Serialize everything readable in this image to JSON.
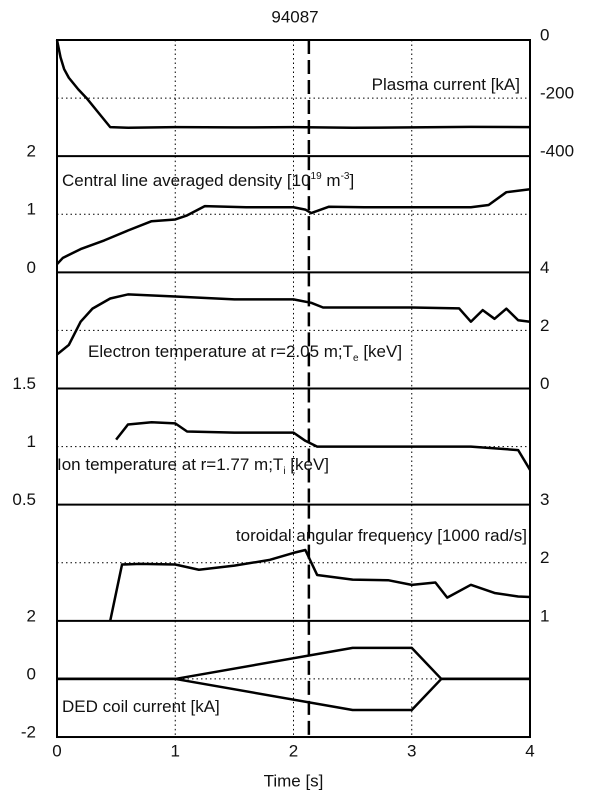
{
  "chart_data": [
    {
      "type": "line",
      "title": "94087",
      "annotation": [
        {
          "text": "Plasma current [kA]"
        }
      ],
      "yaxis_side": "right",
      "xlim": [
        0,
        4
      ],
      "xticks": [
        0,
        1,
        2,
        3,
        4
      ],
      "ylim": [
        -400,
        0
      ],
      "yticks": [
        0,
        -200,
        -400
      ],
      "grid": true,
      "vline": 2.13,
      "series": [
        {
          "color": "#000000",
          "x": [
            0,
            0.03,
            0.06,
            0.1,
            0.18,
            0.25,
            0.35,
            0.45,
            0.6,
            1,
            1.5,
            2,
            2.5,
            3,
            3.5,
            4
          ],
          "values": [
            0,
            -60,
            -100,
            -130,
            -170,
            -200,
            -250,
            -300,
            -302,
            -300,
            -301,
            -300,
            -302,
            -301,
            -299,
            -300
          ]
        }
      ]
    },
    {
      "type": "line",
      "annotation": [
        {
          "text": "Central line averaged density [10"
        },
        {
          "text": "19",
          "shift": "super"
        },
        {
          "text": " m"
        },
        {
          "text": "-3",
          "shift": "super"
        },
        {
          "text": "]"
        }
      ],
      "yaxis_side": "left",
      "xlim": [
        0,
        4
      ],
      "xticks": [
        0,
        1,
        2,
        3,
        4
      ],
      "ylim": [
        0,
        2
      ],
      "yticks": [
        2,
        1,
        0
      ],
      "grid": true,
      "vline": 2.13,
      "series": [
        {
          "color": "#000000",
          "x": [
            0,
            0.05,
            0.2,
            0.4,
            0.6,
            0.8,
            1,
            1.1,
            1.25,
            1.6,
            2,
            2.1,
            2.15,
            2.3,
            2.6,
            3,
            3.5,
            3.65,
            3.8,
            4
          ],
          "values": [
            0.14,
            0.25,
            0.4,
            0.55,
            0.72,
            0.88,
            0.91,
            0.98,
            1.14,
            1.12,
            1.12,
            1.08,
            1.02,
            1.13,
            1.12,
            1.12,
            1.12,
            1.16,
            1.38,
            1.43
          ]
        }
      ]
    },
    {
      "type": "line",
      "annotation": [
        {
          "text": "Electron temperature at r=2.05 m;T"
        },
        {
          "text": "e",
          "shift": "sub"
        },
        {
          "text": " [keV]"
        }
      ],
      "yaxis_side": "right",
      "xlim": [
        0,
        4
      ],
      "xticks": [
        0,
        1,
        2,
        3,
        4
      ],
      "ylim": [
        0,
        4
      ],
      "yticks": [
        4,
        2,
        0
      ],
      "grid": true,
      "vline": 2.13,
      "series": [
        {
          "color": "#000000",
          "x": [
            0,
            0.1,
            0.2,
            0.3,
            0.45,
            0.6,
            1,
            1.5,
            2,
            2.15,
            2.25,
            3,
            3.4,
            3.5,
            3.6,
            3.7,
            3.8,
            3.9,
            4
          ],
          "values": [
            1.17,
            1.5,
            2.3,
            2.75,
            3.1,
            3.24,
            3.17,
            3.07,
            3.07,
            2.95,
            2.79,
            2.79,
            2.76,
            2.3,
            2.7,
            2.4,
            2.75,
            2.35,
            2.3
          ]
        }
      ]
    },
    {
      "type": "line",
      "annotation": [
        {
          "text": "Ion temperature at r=1.77 m;T"
        },
        {
          "text": "i",
          "shift": "sub"
        },
        {
          "text": " [keV]"
        }
      ],
      "yaxis_side": "left",
      "xlim": [
        0,
        4
      ],
      "xticks": [
        0,
        1,
        2,
        3,
        4
      ],
      "ylim": [
        0.5,
        1.5
      ],
      "yticks": [
        1.5,
        1,
        0.5
      ],
      "grid": true,
      "vline": 2.13,
      "series": [
        {
          "color": "#000000",
          "x": [
            0.5,
            0.6,
            0.8,
            1,
            1.1,
            1.5,
            2,
            2.1,
            2.2,
            3,
            3.5,
            3.9,
            4
          ],
          "values": [
            1.06,
            1.19,
            1.21,
            1.2,
            1.13,
            1.12,
            1.12,
            1.05,
            1.0,
            1.0,
            1.0,
            0.97,
            0.8
          ]
        }
      ]
    },
    {
      "type": "line",
      "annotation": [
        {
          "text": "toroidal angular frequency [1000 rad/s]"
        }
      ],
      "yaxis_side": "right",
      "xlim": [
        0,
        4
      ],
      "xticks": [
        0,
        1,
        2,
        3,
        4
      ],
      "ylim": [
        1,
        3
      ],
      "yticks": [
        3,
        2,
        1
      ],
      "grid": true,
      "vline": 2.13,
      "series": [
        {
          "color": "#000000",
          "x": [
            0.45,
            0.55,
            0.7,
            1,
            1.2,
            1.5,
            1.8,
            2,
            2.1,
            2.2,
            2.5,
            2.8,
            3,
            3.2,
            3.3,
            3.5,
            3.7,
            3.9,
            4
          ],
          "values": [
            1,
            1.97,
            1.98,
            1.97,
            1.88,
            1.95,
            2.05,
            2.17,
            2.22,
            1.79,
            1.71,
            1.7,
            1.62,
            1.66,
            1.4,
            1.62,
            1.48,
            1.42,
            1.41
          ]
        }
      ]
    },
    {
      "type": "line",
      "annotation": [
        {
          "text": "DED coil current [kA]"
        }
      ],
      "yaxis_side": "left",
      "xlabel": "Time [s]",
      "xlim": [
        0,
        4
      ],
      "xticks": [
        0,
        1,
        2,
        3,
        4
      ],
      "ylim": [
        -2,
        2
      ],
      "yticks": [
        2,
        0,
        -2
      ],
      "grid": true,
      "vline": 2.13,
      "series": [
        {
          "color": "#000000",
          "x": [
            0,
            1,
            2.5,
            3,
            3.25,
            4
          ],
          "values": [
            0,
            0,
            1.07,
            1.07,
            0,
            0
          ]
        },
        {
          "color": "#000000",
          "x": [
            0,
            1,
            2.5,
            3,
            3.25,
            4
          ],
          "values": [
            0,
            0,
            -1.07,
            -1.07,
            0,
            0
          ]
        }
      ]
    }
  ]
}
